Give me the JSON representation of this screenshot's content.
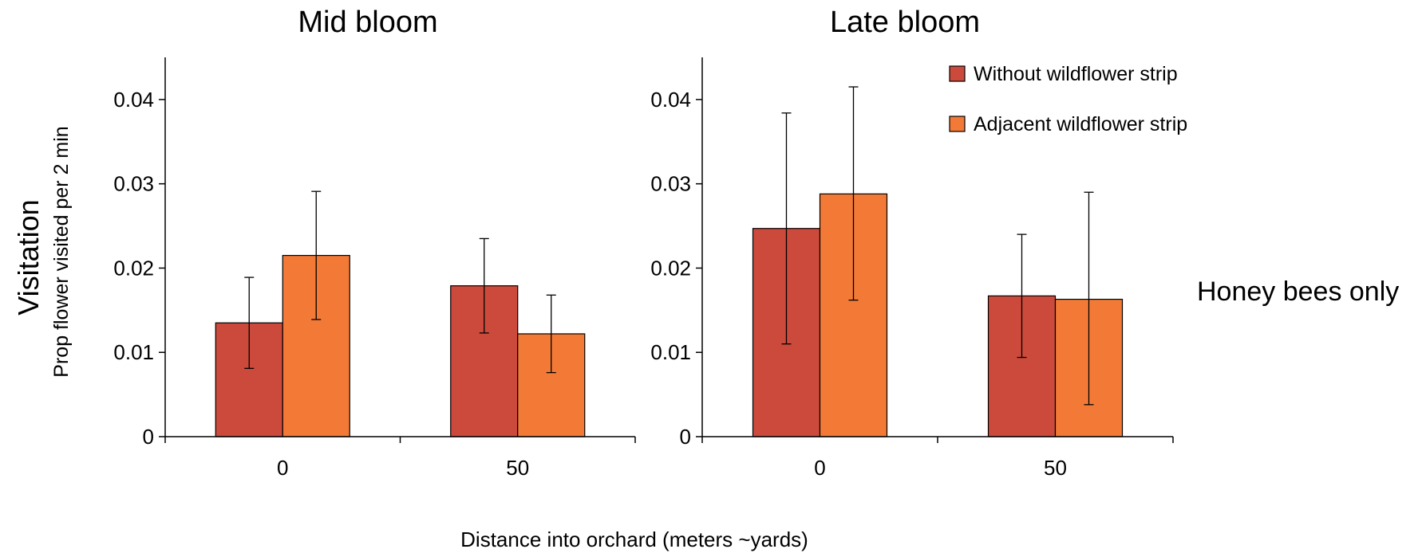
{
  "ylabel_main": "Visitation",
  "ylabel_sub": "Prop flower visited per 2 min",
  "xlabel": "Distance into orchard  (meters  ~yards)",
  "side_label": "Honey bees only",
  "colors": {
    "without": "#cc4a3b",
    "adjacent": "#f37a36"
  },
  "chart_data": [
    {
      "type": "bar",
      "title": "Mid bloom",
      "categories": [
        "0",
        "50"
      ],
      "ylim": [
        0,
        0.045
      ],
      "yticks": [
        0,
        0.01,
        0.02,
        0.03,
        0.04
      ],
      "ytick_labels": [
        "0",
        "0.01",
        "0.02",
        "0.03",
        "0.04"
      ],
      "grid": false,
      "series": [
        {
          "name": "Without wildflower strip",
          "values": [
            0.0135,
            0.0179
          ],
          "err_low": [
            0.0081,
            0.0123
          ],
          "err_high": [
            0.0189,
            0.0235
          ]
        },
        {
          "name": "Adjacent wildflower strip",
          "values": [
            0.0215,
            0.0122
          ],
          "err_low": [
            0.0139,
            0.0076
          ],
          "err_high": [
            0.0291,
            0.0168
          ]
        }
      ]
    },
    {
      "type": "bar",
      "title": "Late bloom",
      "categories": [
        "0",
        "50"
      ],
      "ylim": [
        0,
        0.045
      ],
      "yticks": [
        0,
        0.01,
        0.02,
        0.03,
        0.04
      ],
      "ytick_labels": [
        "0",
        "0.01",
        "0.02",
        "0.03",
        "0.04"
      ],
      "grid": false,
      "legend": "top-right",
      "series": [
        {
          "name": "Without wildflower strip",
          "values": [
            0.0247,
            0.0167
          ],
          "err_low": [
            0.011,
            0.0094
          ],
          "err_high": [
            0.0384,
            0.024
          ]
        },
        {
          "name": "Adjacent wildflower strip",
          "values": [
            0.0288,
            0.0163
          ],
          "err_low": [
            0.0162,
            0.0038
          ],
          "err_high": [
            0.0415,
            0.029
          ]
        }
      ]
    }
  ]
}
